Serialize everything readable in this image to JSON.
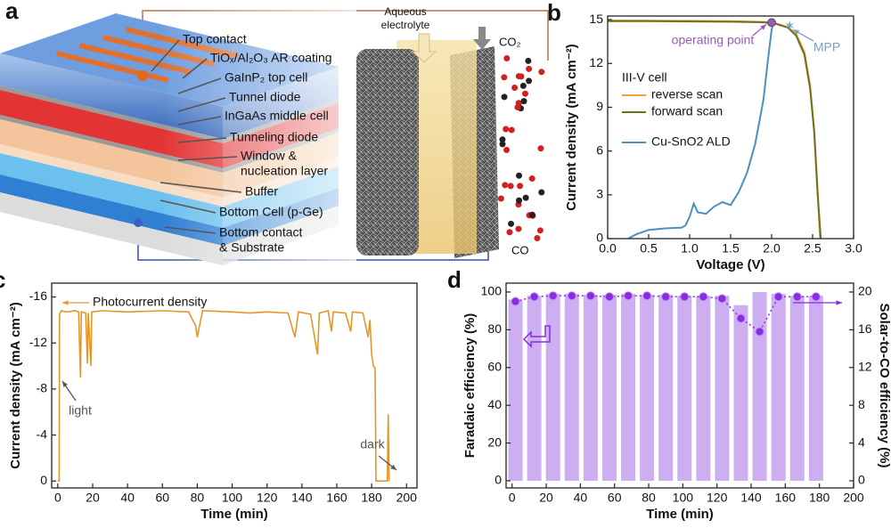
{
  "diagram": {
    "panel_label": "a",
    "layer_labels": [
      "Top contact",
      "TiOₓ/Al₂O₃ AR coating",
      "GaInP₂ top cell",
      "Tunnel diode",
      "InGaAs middle cell",
      "Tunneling diode",
      [
        "Window &",
        "nucleation layer"
      ],
      "Buffer",
      "Bottom Cell (p-Ge)",
      [
        "Bottom contact",
        "& Substrate"
      ]
    ],
    "electrolyte_label": [
      "Aqueous",
      "electrolyte"
    ],
    "reactant_label": "CO₂",
    "product_label": "CO"
  },
  "chart_data": [
    {
      "type": "line",
      "panel_label": "b",
      "x_label": "Voltage (V)",
      "y_label": "Current density  (mA cm⁻²)",
      "xlim": [
        0,
        3
      ],
      "ylim": [
        0,
        15.25
      ],
      "xticks": [
        {
          "value": 0,
          "label": "0.0"
        },
        0.5,
        {
          "value": 1,
          "label": "1.0"
        },
        1.5,
        {
          "value": 2,
          "label": "2.0"
        },
        2.5,
        {
          "value": 3,
          "label": "3.0"
        }
      ],
      "yticks": [
        0,
        3,
        6,
        9,
        12,
        15
      ],
      "legend_title": "III-V cell",
      "series": [
        {
          "name": "reverse scan",
          "color": "#f0a040",
          "x": [
            0,
            0.5,
            1.0,
            1.5,
            1.9,
            2.05,
            2.2,
            2.3,
            2.4,
            2.47,
            2.52,
            2.56,
            2.59
          ],
          "values": [
            14.95,
            14.94,
            14.92,
            14.9,
            14.85,
            14.75,
            14.5,
            14.0,
            12.8,
            10.5,
            7.5,
            3.5,
            0
          ]
        },
        {
          "name": "forward scan",
          "color": "#6f6f1e",
          "x": [
            0,
            0.5,
            1.0,
            1.5,
            1.9,
            2.05,
            2.2,
            2.3,
            2.4,
            2.47,
            2.52,
            2.56,
            2.6
          ],
          "values": [
            14.9,
            14.9,
            14.88,
            14.86,
            14.82,
            14.72,
            14.45,
            13.9,
            12.6,
            10.3,
            7.3,
            3.2,
            0
          ]
        },
        {
          "name": "Cu-SnO2 ALD",
          "color": "#4a8fc2",
          "x": [
            0.25,
            0.35,
            0.5,
            0.7,
            0.9,
            0.95,
            1.0,
            1.05,
            1.1,
            1.2,
            1.3,
            1.4,
            1.5,
            1.6,
            1.7,
            1.8,
            1.9,
            1.95,
            2.0,
            2.02
          ],
          "values": [
            0,
            0.3,
            0.6,
            0.7,
            0.75,
            0.9,
            1.5,
            2.4,
            1.8,
            1.7,
            2.2,
            2.5,
            2.3,
            3.2,
            4.5,
            6.5,
            9.5,
            12,
            14.3,
            14.8
          ]
        }
      ],
      "annotations": [
        {
          "text": "operating point",
          "x": 2.0,
          "y": 14.8,
          "marker": "circle",
          "color": "#9b59b6"
        },
        {
          "text": "MPP",
          "x": 2.22,
          "y": 14.5,
          "marker": "star",
          "color": "#7f9fbf"
        }
      ]
    },
    {
      "type": "line",
      "panel_label": "c",
      "x_label": "Time (min)",
      "y_label": "Current density (mA cm⁻²)",
      "xlim": [
        -3.5,
        206
      ],
      "ylim": [
        0.6,
        -17.2
      ],
      "xticks": [
        0,
        20,
        40,
        60,
        80,
        100,
        120,
        140,
        160,
        180,
        200
      ],
      "yticks": [
        0,
        -4,
        -8,
        -12,
        -16
      ],
      "x": [
        0,
        0.8,
        1,
        2,
        5,
        10,
        12,
        13,
        13.5,
        16,
        17,
        17.5,
        19,
        19.5,
        25,
        40,
        60,
        75,
        79,
        80,
        83,
        100,
        110,
        120,
        132,
        136,
        138,
        145,
        149,
        150,
        155,
        157,
        158,
        165,
        168,
        169,
        175,
        178,
        179,
        180,
        181,
        182,
        182.5,
        189,
        189.5,
        190
      ],
      "series": [
        {
          "name": "Photocurrent density",
          "color": "#e3962a",
          "values": [
            0,
            0,
            -14.5,
            -14.8,
            -14.7,
            -14.8,
            -14.7,
            -9,
            -14.7,
            -14.6,
            -10.2,
            -14.6,
            -10,
            -14.7,
            -14.8,
            -14.7,
            -14.8,
            -14.7,
            -13.5,
            -12.5,
            -14.8,
            -14.7,
            -14.6,
            -14.7,
            -14.6,
            -12.5,
            -14.7,
            -14.5,
            -11,
            -14.6,
            -14.8,
            -13,
            -14.7,
            -14.6,
            -13,
            -14.7,
            -14.6,
            -12.5,
            -14,
            -11,
            -10,
            -9.8,
            0,
            0,
            -5.8,
            0
          ]
        }
      ],
      "annotations": [
        {
          "text": "light"
        },
        {
          "text": "dark"
        }
      ]
    },
    {
      "type": "bar",
      "panel_label": "d",
      "x_label": "Time (min)",
      "y_label": "Faradaic efficiency (%)",
      "y2_label": "Solar-to-CO efficiency (%)",
      "xlim": [
        -3.5,
        200
      ],
      "ylim": [
        -3.8,
        104.7
      ],
      "y2lim": [
        -0.76,
        20.94
      ],
      "xticks": [
        0,
        20,
        40,
        60,
        80,
        100,
        120,
        140,
        160,
        180,
        200
      ],
      "yticks": [
        0,
        20,
        40,
        60,
        80,
        100
      ],
      "y2ticks": [
        0,
        4,
        8,
        12,
        16,
        20
      ],
      "x": [
        2,
        13,
        24,
        35,
        46,
        57,
        68,
        79,
        90,
        101,
        112,
        123,
        134,
        145,
        156,
        167,
        178
      ],
      "series": [
        {
          "color": "#cdaef0",
          "values": [
            96,
            98,
            99,
            99,
            98.5,
            98.5,
            99,
            98.5,
            98.5,
            98,
            98,
            98,
            93,
            100,
            99,
            98,
            98
          ]
        },
        {
          "color": "#8a2be2",
          "axis": "y2",
          "values": [
            19,
            19.5,
            19.6,
            19.6,
            19.6,
            19.5,
            19.6,
            19.6,
            19.5,
            19.5,
            19.5,
            19.3,
            17.2,
            15.8,
            19.5,
            19.5,
            19.5
          ]
        }
      ]
    }
  ]
}
